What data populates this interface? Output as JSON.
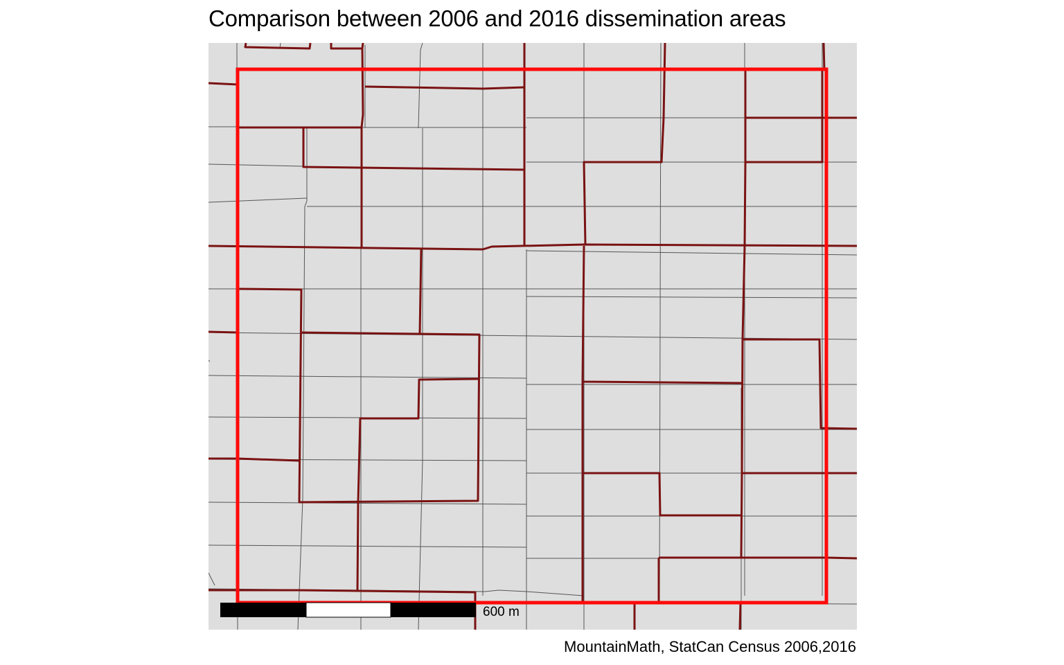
{
  "title": "Comparison between 2006 and 2016 dissemination areas",
  "caption": "MountainMath, StatCan Census 2006,2016",
  "scale_bar": {
    "label": "600 m",
    "segments": [
      "black",
      "white",
      "black"
    ]
  },
  "colors": {
    "panel_background": "#dedede",
    "da_2016_boundary": "#555555",
    "da_2006_boundary": "#7a1212",
    "comparison_region": "#ff0a0a",
    "scale_dark": "#000000",
    "scale_light": "#ffffff"
  },
  "layers": [
    {
      "id": "da-2016",
      "description_visible": false
    },
    {
      "id": "da-2006",
      "description_visible": false
    },
    {
      "id": "comparison-region",
      "description_visible": false
    }
  ]
}
